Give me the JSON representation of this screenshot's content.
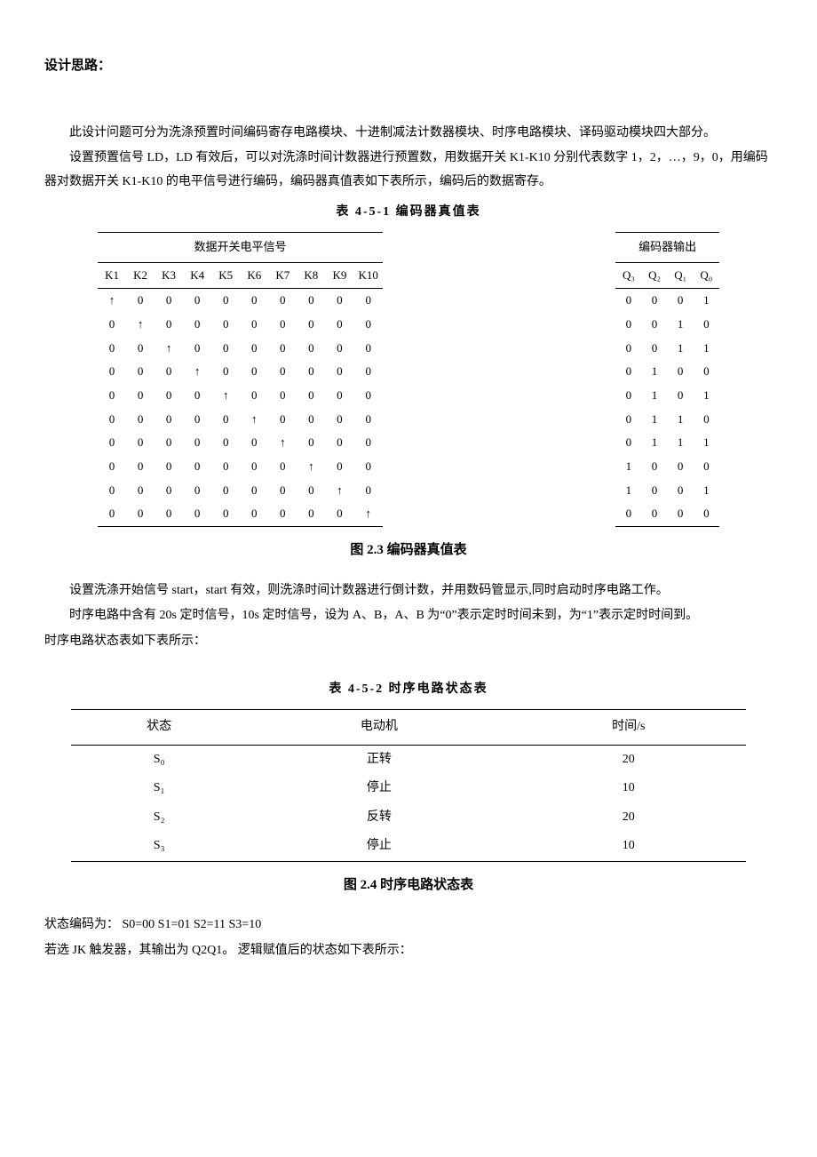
{
  "heading": "设计思路：",
  "p1": "此设计问题可分为洗涤预置时间编码寄存电路模块、十进制减法计数器模块、时序电路模块、译码驱动模块四大部分。",
  "p2": "设置预置信号 LD，LD 有效后，可以对洗涤时间计数器进行预置数，用数据开关 K1-K10 分别代表数字 1，2，…，9，0，用编码器对数据开关 K1-K10 的电平信号进行编码，编码器真值表如下表所示，编码后的数据寄存。",
  "table1_caption": "表 4-5-1   编码器真值表",
  "table1_header_left": "数据开关电平信号",
  "table1_header_right": "编码器输出",
  "table1_subheader_k": [
    "K1",
    "K2",
    "K3",
    "K4",
    "K5",
    "K6",
    "K7",
    "K8",
    "K9",
    "K10"
  ],
  "table1_subheader_q": [
    "Q₃",
    "Q₂",
    "Q₁",
    "Q₀"
  ],
  "table1_rows": [
    {
      "k": [
        "↑",
        "0",
        "0",
        "0",
        "0",
        "0",
        "0",
        "0",
        "0",
        "0"
      ],
      "q": [
        "0",
        "0",
        "0",
        "1"
      ]
    },
    {
      "k": [
        "0",
        "↑",
        "0",
        "0",
        "0",
        "0",
        "0",
        "0",
        "0",
        "0"
      ],
      "q": [
        "0",
        "0",
        "1",
        "0"
      ]
    },
    {
      "k": [
        "0",
        "0",
        "↑",
        "0",
        "0",
        "0",
        "0",
        "0",
        "0",
        "0"
      ],
      "q": [
        "0",
        "0",
        "1",
        "1"
      ]
    },
    {
      "k": [
        "0",
        "0",
        "0",
        "↑",
        "0",
        "0",
        "0",
        "0",
        "0",
        "0"
      ],
      "q": [
        "0",
        "1",
        "0",
        "0"
      ]
    },
    {
      "k": [
        "0",
        "0",
        "0",
        "0",
        "↑",
        "0",
        "0",
        "0",
        "0",
        "0"
      ],
      "q": [
        "0",
        "1",
        "0",
        "1"
      ]
    },
    {
      "k": [
        "0",
        "0",
        "0",
        "0",
        "0",
        "↑",
        "0",
        "0",
        "0",
        "0"
      ],
      "q": [
        "0",
        "1",
        "1",
        "0"
      ]
    },
    {
      "k": [
        "0",
        "0",
        "0",
        "0",
        "0",
        "0",
        "↑",
        "0",
        "0",
        "0"
      ],
      "q": [
        "0",
        "1",
        "1",
        "1"
      ]
    },
    {
      "k": [
        "0",
        "0",
        "0",
        "0",
        "0",
        "0",
        "0",
        "↑",
        "0",
        "0"
      ],
      "q": [
        "1",
        "0",
        "0",
        "0"
      ]
    },
    {
      "k": [
        "0",
        "0",
        "0",
        "0",
        "0",
        "0",
        "0",
        "0",
        "↑",
        "0"
      ],
      "q": [
        "1",
        "0",
        "0",
        "1"
      ]
    },
    {
      "k": [
        "0",
        "0",
        "0",
        "0",
        "0",
        "0",
        "0",
        "0",
        "0",
        "↑"
      ],
      "q": [
        "0",
        "0",
        "0",
        "0"
      ]
    }
  ],
  "fig1_caption": "图 2.3  编码器真值表",
  "p3": "设置洗涤开始信号 start，start 有效，则洗涤时间计数器进行倒计数，并用数码管显示,同时启动时序电路工作。",
  "p4": "时序电路中含有 20s 定时信号，10s 定时信号，设为 A、B，A、B 为“0”表示定时时间未到，为“1”表示定时时间到。",
  "p5": "时序电路状态表如下表所示：",
  "table2_caption": "表 4-5-2    时序电路状态表",
  "table2_headers": [
    "状态",
    "电动机",
    "时间/s"
  ],
  "table2_rows": [
    {
      "state": "S₀",
      "motor": "正转",
      "time": "20"
    },
    {
      "state": "S₁",
      "motor": "停止",
      "time": "10"
    },
    {
      "state": "S₂",
      "motor": "反转",
      "time": "20"
    },
    {
      "state": "S₃",
      "motor": "停止",
      "time": "10"
    }
  ],
  "fig2_caption": "图  2.4  时序电路状态表",
  "p6": "状态编码为：  S0=00 S1=01 S2=11 S3=10",
  "p7": "若选 JK 触发器，其输出为 Q2Q1。 逻辑赋值后的状态如下表所示："
}
